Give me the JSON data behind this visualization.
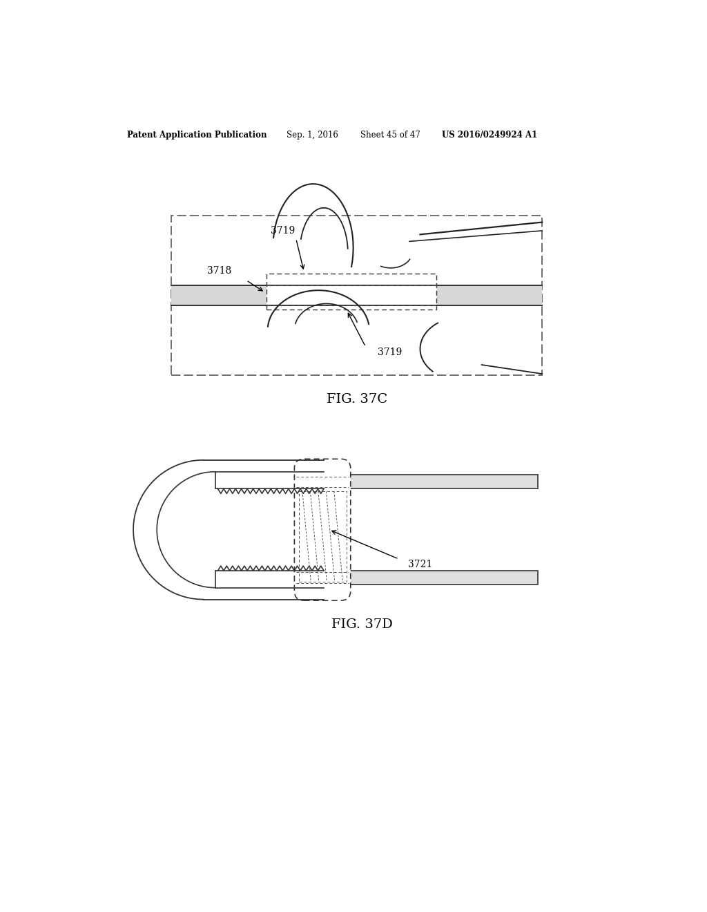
{
  "bg_color": "#ffffff",
  "header_text": "Patent Application Publication",
  "header_date": "Sep. 1, 2016",
  "header_sheet": "Sheet 45 of 47",
  "header_patent": "US 2016/0249924 A1",
  "fig37c_label": "FIG. 37C",
  "fig37d_label": "FIG. 37D",
  "label_3718": "3718",
  "label_3719_top": "3719",
  "label_3719_bot": "3719",
  "label_3721": "3721"
}
